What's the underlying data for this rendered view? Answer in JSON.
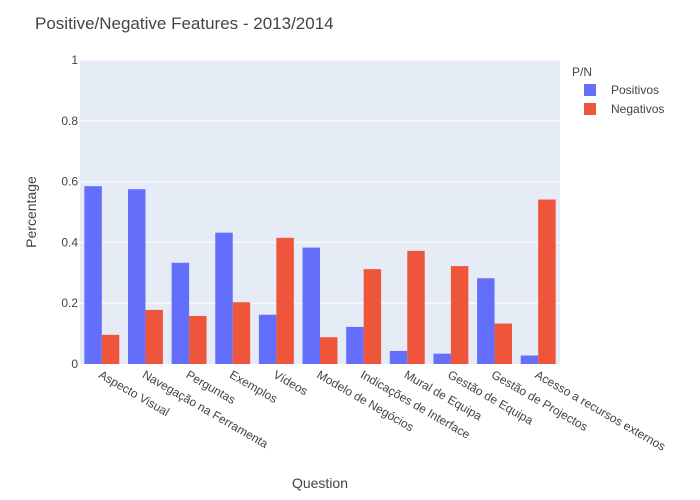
{
  "chart_data": {
    "type": "bar",
    "title": "Positive/Negative Features  - 2013/2014",
    "xlabel": "Question",
    "ylabel": "Percentage",
    "ylim": [
      0,
      1
    ],
    "yticks": [
      0,
      0.2,
      0.4,
      0.6,
      0.8,
      1
    ],
    "ytick_labels": [
      "0",
      "0.2",
      "0.4",
      "0.6",
      "0.8",
      "1"
    ],
    "grid": true,
    "legend_title": "P/N",
    "legend_position": "top-right",
    "categories": [
      "Aspecto Visual",
      "Navegação na Ferramenta",
      "Perguntas",
      "Exemplos",
      "Vídeos",
      "Modelo de Negócios",
      "Indicações de Interface",
      "Mural de Equipa",
      "Gestão de Equipa",
      "Gestão de Projectos",
      "Acesso a recursos externos"
    ],
    "series": [
      {
        "name": "Positivos",
        "color": "#636efa",
        "values": [
          0.585,
          0.575,
          0.333,
          0.432,
          0.162,
          0.383,
          0.122,
          0.043,
          0.034,
          0.282,
          0.028
        ]
      },
      {
        "name": "Negativos",
        "color": "#ef553b",
        "values": [
          0.096,
          0.178,
          0.158,
          0.203,
          0.415,
          0.088,
          0.312,
          0.372,
          0.322,
          0.133,
          0.541
        ]
      }
    ]
  }
}
